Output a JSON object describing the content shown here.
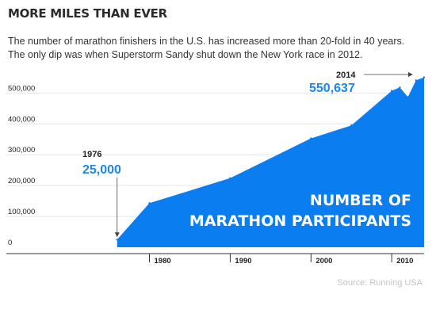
{
  "page": {
    "title": "MORE MILES THAN EVER",
    "subtitle": "The number of marathon finishers in the U.S. has increased more than 20-fold in 40 years. The only dip was when Superstorm Sandy shut down the New York race in 2012.",
    "source": "Source: Running USA"
  },
  "colors": {
    "area": "#0a7df0",
    "accent_text": "#1a88f0",
    "axis": "#333333",
    "grid": "#e6e6e6"
  },
  "chart_data": {
    "type": "area",
    "title": "MORE MILES THAN EVER",
    "xlabel": "",
    "ylabel": "",
    "x": [
      1976,
      1980,
      1990,
      2000,
      2005,
      2010,
      2011,
      2012,
      2013,
      2014
    ],
    "series": [
      {
        "name": "NUMBER OF MARATHON PARTICIPANTS",
        "values": [
          25000,
          143000,
          224000,
          353000,
          395000,
          507000,
          518000,
          487000,
          541000,
          550637
        ]
      }
    ],
    "xlim": [
      1972,
      2014
    ],
    "ylim": [
      0,
      560000
    ],
    "x_ticks": [
      1980,
      1990,
      2000,
      2010
    ],
    "x_tick_labels": [
      "1980",
      "1990",
      "2000",
      "2010"
    ],
    "y_ticks": [
      0,
      100000,
      200000,
      300000,
      400000,
      500000
    ],
    "y_tick_labels": [
      "0",
      "100,000",
      "200,000",
      "300,000",
      "400,000",
      "500,000"
    ],
    "grid": true,
    "annotations": [
      {
        "year_label": "1976",
        "value_label": "25,000"
      },
      {
        "year_label": "2014",
        "value_label": "550,637"
      }
    ],
    "area_label_lines": [
      "NUMBER OF",
      "MARATHON PARTICIPANTS"
    ]
  }
}
